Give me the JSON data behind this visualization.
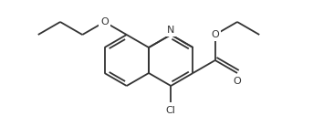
{
  "background_color": "#ffffff",
  "line_color": "#333333",
  "line_width": 1.3,
  "font_size": 8.0,
  "fig_width": 3.66,
  "fig_height": 1.5,
  "dpi": 100,
  "xlim": [
    0,
    366
  ],
  "ylim": [
    0,
    150
  ]
}
